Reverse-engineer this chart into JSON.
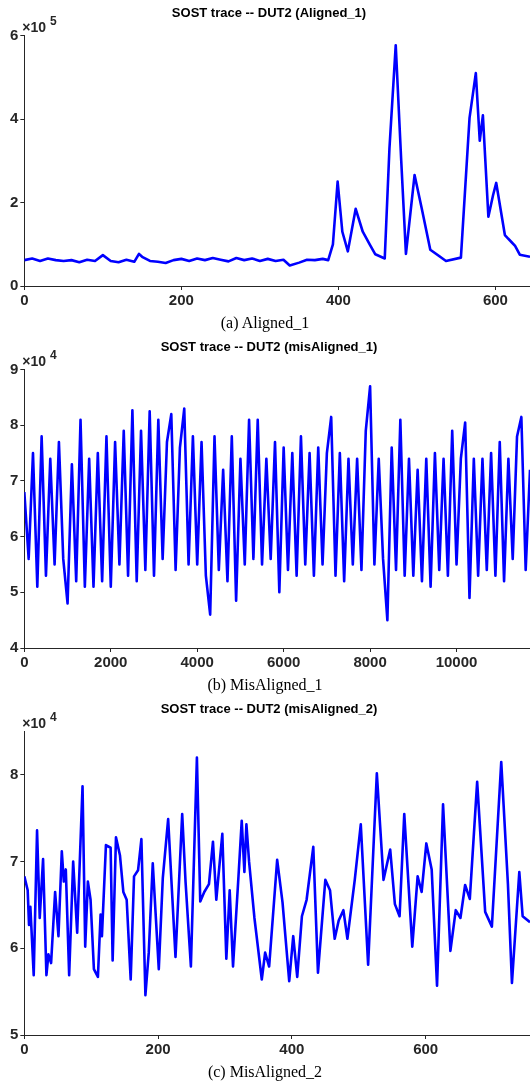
{
  "chart_data": [
    {
      "type": "line",
      "title": "SOST trace -- DUT2 (Aligned_1)",
      "annotations": [
        "×10$^{5}$",
        "(a) Aligned_1"
      ],
      "xlim": [
        0,
        644
      ],
      "xticks": [
        0,
        200,
        400,
        600
      ],
      "ylim": [
        0,
        6
      ],
      "yticks": [
        0,
        2,
        4,
        6
      ],
      "grid": false,
      "legend": false,
      "x": [
        0,
        10,
        20,
        30,
        40,
        50,
        60,
        70,
        80,
        90,
        100,
        110,
        120,
        130,
        140,
        146,
        150,
        160,
        170,
        180,
        190,
        200,
        210,
        220,
        230,
        240,
        250,
        260,
        270,
        280,
        290,
        300,
        310,
        320,
        330,
        338,
        350,
        360,
        370,
        380,
        387,
        393,
        399,
        405,
        412,
        422,
        431,
        440,
        447,
        459,
        465,
        473,
        480,
        486,
        497,
        506,
        517,
        537,
        556,
        567,
        575,
        580,
        584,
        591,
        597,
        601,
        612,
        620,
        625,
        631,
        644
      ],
      "series": [
        {
          "color": "#0000ff",
          "values": [
            0.62,
            0.66,
            0.6,
            0.66,
            0.62,
            0.6,
            0.62,
            0.57,
            0.63,
            0.6,
            0.74,
            0.6,
            0.57,
            0.63,
            0.58,
            0.77,
            0.7,
            0.6,
            0.58,
            0.55,
            0.62,
            0.65,
            0.6,
            0.66,
            0.62,
            0.67,
            0.63,
            0.59,
            0.67,
            0.62,
            0.66,
            0.6,
            0.65,
            0.6,
            0.63,
            0.49,
            0.56,
            0.63,
            0.62,
            0.65,
            0.62,
            1.0,
            2.5,
            1.3,
            0.83,
            1.85,
            1.3,
            0.99,
            0.76,
            0.66,
            3.3,
            5.77,
            3.0,
            0.77,
            2.66,
            1.87,
            0.87,
            0.6,
            0.68,
            4.03,
            5.1,
            3.48,
            4.09,
            1.66,
            2.18,
            2.47,
            1.22,
            1.06,
            0.96,
            0.75,
            0.7
          ]
        }
      ]
    },
    {
      "type": "line",
      "title": "SOST trace -- DUT2 (misAligned_1)",
      "annotations": [
        "×10$^{4}$",
        "(b) MisAligned_1"
      ],
      "xlim": [
        0,
        11700
      ],
      "xticks": [
        0,
        2000,
        4000,
        6000,
        8000,
        10000
      ],
      "ylim": [
        4,
        9
      ],
      "yticks": [
        4,
        5,
        6,
        7,
        8,
        9
      ],
      "grid": false,
      "legend": false,
      "x": [
        0,
        100,
        200,
        300,
        400,
        500,
        600,
        700,
        800,
        900,
        1000,
        1100,
        1200,
        1300,
        1400,
        1500,
        1600,
        1700,
        1800,
        1900,
        2000,
        2100,
        2200,
        2300,
        2400,
        2500,
        2600,
        2700,
        2800,
        2900,
        3000,
        3100,
        3200,
        3300,
        3400,
        3500,
        3600,
        3700,
        3800,
        3900,
        4000,
        4100,
        4200,
        4300,
        4400,
        4500,
        4600,
        4700,
        4800,
        4900,
        5000,
        5100,
        5200,
        5300,
        5400,
        5500,
        5600,
        5700,
        5800,
        5900,
        6000,
        6100,
        6200,
        6300,
        6400,
        6500,
        6600,
        6700,
        6800,
        6900,
        7000,
        7100,
        7200,
        7300,
        7400,
        7500,
        7600,
        7700,
        7800,
        7900,
        8000,
        8100,
        8200,
        8300,
        8400,
        8500,
        8600,
        8700,
        8800,
        8900,
        9000,
        9100,
        9200,
        9300,
        9400,
        9500,
        9600,
        9700,
        9800,
        9900,
        10000,
        10100,
        10200,
        10300,
        10400,
        10500,
        10600,
        10700,
        10800,
        10900,
        11000,
        11100,
        11200,
        11300,
        11400,
        11500,
        11600,
        11700
      ],
      "series": [
        {
          "color": "#0000ff",
          "values": [
            6.8,
            5.6,
            7.5,
            5.1,
            7.8,
            5.3,
            7.4,
            5.5,
            7.7,
            5.6,
            4.8,
            7.3,
            5.2,
            8.1,
            5.1,
            7.4,
            5.1,
            7.5,
            5.2,
            7.8,
            5.1,
            7.7,
            5.5,
            7.9,
            5.3,
            8.27,
            5.2,
            7.9,
            5.4,
            8.25,
            5.3,
            8.1,
            5.6,
            7.7,
            8.2,
            5.4,
            7.6,
            8.3,
            5.5,
            7.8,
            5.5,
            7.7,
            5.3,
            4.6,
            7.8,
            5.4,
            7.2,
            5.2,
            7.8,
            4.85,
            7.4,
            5.5,
            8.1,
            5.6,
            8.1,
            5.5,
            7.4,
            5.6,
            7.7,
            5.0,
            7.6,
            5.4,
            7.5,
            5.3,
            7.8,
            5.5,
            7.5,
            5.3,
            7.6,
            5.5,
            7.5,
            8.15,
            5.3,
            7.5,
            5.2,
            7.4,
            5.5,
            7.4,
            5.4,
            7.9,
            8.7,
            5.5,
            7.4,
            5.6,
            4.5,
            7.6,
            5.4,
            8.1,
            5.3,
            7.4,
            5.3,
            7.2,
            5.2,
            7.4,
            5.1,
            7.5,
            5.4,
            7.4,
            5.3,
            7.9,
            5.5,
            7.4,
            8.05,
            4.9,
            7.4,
            5.3,
            7.4,
            5.4,
            7.5,
            5.3,
            7.7,
            5.2,
            7.4,
            5.6,
            7.8,
            8.15,
            5.4,
            7.2
          ]
        }
      ]
    },
    {
      "type": "line",
      "title": "SOST trace -- DUT2 (misAligned_2)",
      "annotations": [
        "×10$^{4}$",
        "(c) MisAligned_2"
      ],
      "xlim": [
        0,
        756
      ],
      "xticks": [
        0,
        200,
        400,
        600
      ],
      "ylim": [
        5,
        8.5
      ],
      "yticks": [
        5,
        6,
        7,
        8
      ],
      "grid": false,
      "legend": false,
      "x": [
        0,
        5,
        7,
        9,
        14,
        19,
        23,
        28,
        33,
        36,
        40,
        46,
        51,
        56,
        59,
        62,
        67,
        73,
        79,
        87,
        91,
        95,
        99,
        104,
        110,
        114,
        116,
        122,
        129,
        132,
        137,
        143,
        148,
        153,
        159,
        164,
        170,
        175,
        181,
        186,
        192,
        201,
        207,
        215,
        226,
        236,
        241,
        249,
        258,
        263,
        269,
        276,
        282,
        287,
        296,
        302,
        307,
        312,
        320,
        325,
        329,
        332,
        336,
        344,
        355,
        360,
        366,
        378,
        386,
        396,
        402,
        408,
        415,
        422,
        432,
        439,
        450,
        457,
        464,
        470,
        477,
        483,
        494,
        503,
        514,
        527,
        537,
        547,
        554,
        561,
        568,
        580,
        588,
        594,
        601,
        609,
        617,
        626,
        637,
        645,
        652,
        659,
        666,
        677,
        689,
        699,
        713,
        723,
        729,
        740,
        745,
        756
      ],
      "series": [
        {
          "color": "#0000ff",
          "values": [
            6.83,
            6.67,
            6.27,
            6.48,
            5.69,
            7.36,
            6.35,
            7.03,
            5.69,
            5.93,
            5.83,
            6.65,
            6.14,
            7.12,
            6.77,
            6.91,
            5.69,
            7.0,
            6.18,
            7.87,
            6.02,
            6.77,
            6.56,
            5.76,
            5.67,
            6.39,
            6.14,
            7.19,
            7.16,
            5.86,
            7.28,
            7.07,
            6.65,
            6.56,
            5.64,
            6.83,
            6.9,
            7.26,
            5.46,
            5.95,
            6.98,
            5.76,
            6.81,
            7.49,
            5.9,
            7.55,
            6.77,
            5.79,
            8.2,
            6.54,
            6.65,
            6.74,
            7.23,
            6.56,
            7.32,
            5.88,
            6.67,
            5.79,
            6.81,
            7.47,
            6.88,
            7.43,
            7.0,
            6.35,
            5.64,
            5.95,
            5.79,
            7.02,
            6.53,
            5.62,
            6.14,
            5.67,
            6.37,
            6.56,
            7.17,
            5.72,
            6.79,
            6.67,
            6.11,
            6.32,
            6.44,
            6.11,
            6.79,
            7.43,
            5.81,
            8.02,
            6.79,
            7.14,
            6.51,
            6.37,
            7.55,
            6.02,
            6.83,
            6.65,
            7.21,
            6.91,
            5.57,
            7.66,
            5.97,
            6.44,
            6.35,
            6.73,
            6.57,
            7.92,
            6.42,
            6.25,
            8.15,
            6.74,
            5.6,
            6.88,
            6.37,
            6.3
          ]
        }
      ]
    }
  ]
}
